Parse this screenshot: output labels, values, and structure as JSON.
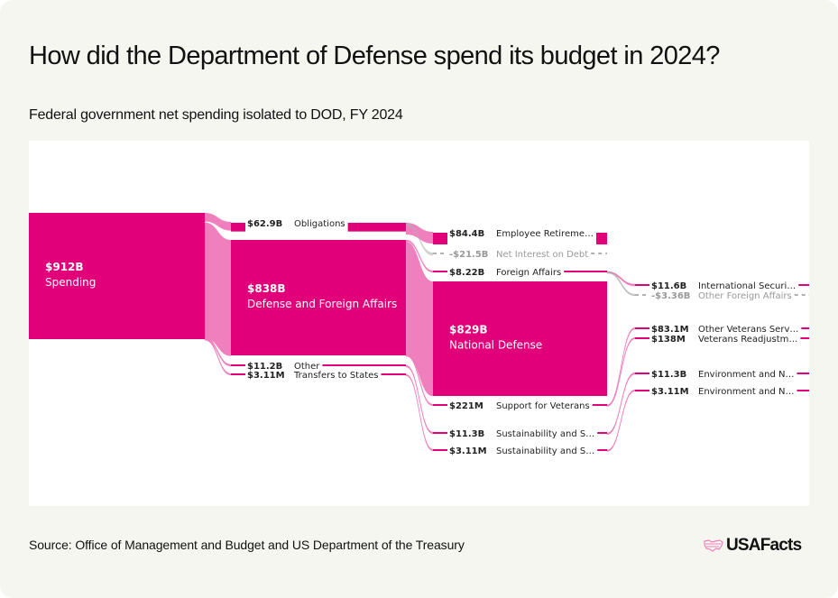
{
  "header": {
    "title": "How did the Department of Defense spend its budget in 2024?",
    "subtitle": "Federal government net spending isolated to DOD, FY 2024"
  },
  "footer": {
    "source": "Source: Office of Management and Budget and US Department of the Treasury",
    "brand": "USAFacts",
    "brand_icon": "us-map-flag-icon"
  },
  "colors": {
    "primary": "#e1007a",
    "link": "#f080bd",
    "negative": "#b0b0b0",
    "negative_text": "#999999"
  },
  "chart_data": {
    "type": "sankey",
    "title": "How did the Department of Defense spend its budget in 2024?",
    "subtitle": "Federal government net spending isolated to DOD, FY 2024",
    "units": "USD",
    "nodes": [
      {
        "id": "spending",
        "label": "Spending",
        "value_label": "$912B",
        "value": 912000000000.0,
        "level": 0
      },
      {
        "id": "obligations",
        "label": "Obligations",
        "value_label": "$62.9B",
        "value": 62900000000.0,
        "level": 1
      },
      {
        "id": "dfa",
        "label": "Defense and Foreign Affairs",
        "value_label": "$838B",
        "value": 838000000000.0,
        "level": 1
      },
      {
        "id": "other",
        "label": "Other",
        "value_label": "$11.2B",
        "value": 11200000000.0,
        "level": 1
      },
      {
        "id": "transfers",
        "label": "Transfers to States",
        "value_label": "$3.11M",
        "value": 3110000.0,
        "level": 1
      },
      {
        "id": "retirement",
        "label": "Employee Retireme…",
        "value_label": "$84.4B",
        "value": 84400000000.0,
        "level": 2
      },
      {
        "id": "interest",
        "label": "Net Interest on Debt",
        "value_label": "-$21.5B",
        "value": -21500000000.0,
        "level": 2
      },
      {
        "id": "foreign",
        "label": "Foreign Affairs",
        "value_label": "$8.22B",
        "value": 8220000000.0,
        "level": 2
      },
      {
        "id": "natdef",
        "label": "National Defense",
        "value_label": "$829B",
        "value": 829000000000.0,
        "level": 2
      },
      {
        "id": "veterans",
        "label": "Support for Veterans",
        "value_label": "$221M",
        "value": 221000000.0,
        "level": 2
      },
      {
        "id": "sust1",
        "label": "Sustainability and S…",
        "value_label": "$11.3B",
        "value": 11300000000.0,
        "level": 2
      },
      {
        "id": "sust2",
        "label": "Sustainability and S…",
        "value_label": "$3.11M",
        "value": 3110000.0,
        "level": 2
      },
      {
        "id": "intlsec",
        "label": "International Securi…",
        "value_label": "$11.6B",
        "value": 11600000000.0,
        "level": 3
      },
      {
        "id": "otherforeign",
        "label": "Other Foreign Affairs",
        "value_label": "-$3.36B",
        "value": -3360000000.0,
        "level": 3
      },
      {
        "id": "otherveterans",
        "label": "Other Veterans Serv…",
        "value_label": "$83.1M",
        "value": 83100000.0,
        "level": 3
      },
      {
        "id": "vetreadj",
        "label": "Veterans Readjustm…",
        "value_label": "$138M",
        "value": 138000000.0,
        "level": 3
      },
      {
        "id": "env1",
        "label": "Environment and N…",
        "value_label": "$11.3B",
        "value": 11300000000.0,
        "level": 3
      },
      {
        "id": "env2",
        "label": "Environment and N…",
        "value_label": "$3.11M",
        "value": 3110000.0,
        "level": 3
      }
    ],
    "links": [
      {
        "source": "spending",
        "target": "obligations",
        "value": 62900000000.0
      },
      {
        "source": "spending",
        "target": "dfa",
        "value": 838000000000.0
      },
      {
        "source": "spending",
        "target": "other",
        "value": 11200000000.0
      },
      {
        "source": "spending",
        "target": "transfers",
        "value": 3110000.0
      },
      {
        "source": "obligations",
        "target": "retirement",
        "value": 84400000000.0
      },
      {
        "source": "obligations",
        "target": "interest",
        "value": -21500000000.0
      },
      {
        "source": "dfa",
        "target": "foreign",
        "value": 8220000000.0
      },
      {
        "source": "dfa",
        "target": "natdef",
        "value": 829000000000.0
      },
      {
        "source": "dfa",
        "target": "veterans",
        "value": 221000000.0
      },
      {
        "source": "other",
        "target": "sust1",
        "value": 11300000000.0
      },
      {
        "source": "transfers",
        "target": "sust2",
        "value": 3110000.0
      },
      {
        "source": "foreign",
        "target": "intlsec",
        "value": 11600000000.0
      },
      {
        "source": "foreign",
        "target": "otherforeign",
        "value": -3360000000.0
      },
      {
        "source": "veterans",
        "target": "otherveterans",
        "value": 83100000.0
      },
      {
        "source": "veterans",
        "target": "vetreadj",
        "value": 138000000.0
      },
      {
        "source": "sust1",
        "target": "env1",
        "value": 11300000000.0
      },
      {
        "source": "sust2",
        "target": "env2",
        "value": 3110000.0
      }
    ]
  }
}
